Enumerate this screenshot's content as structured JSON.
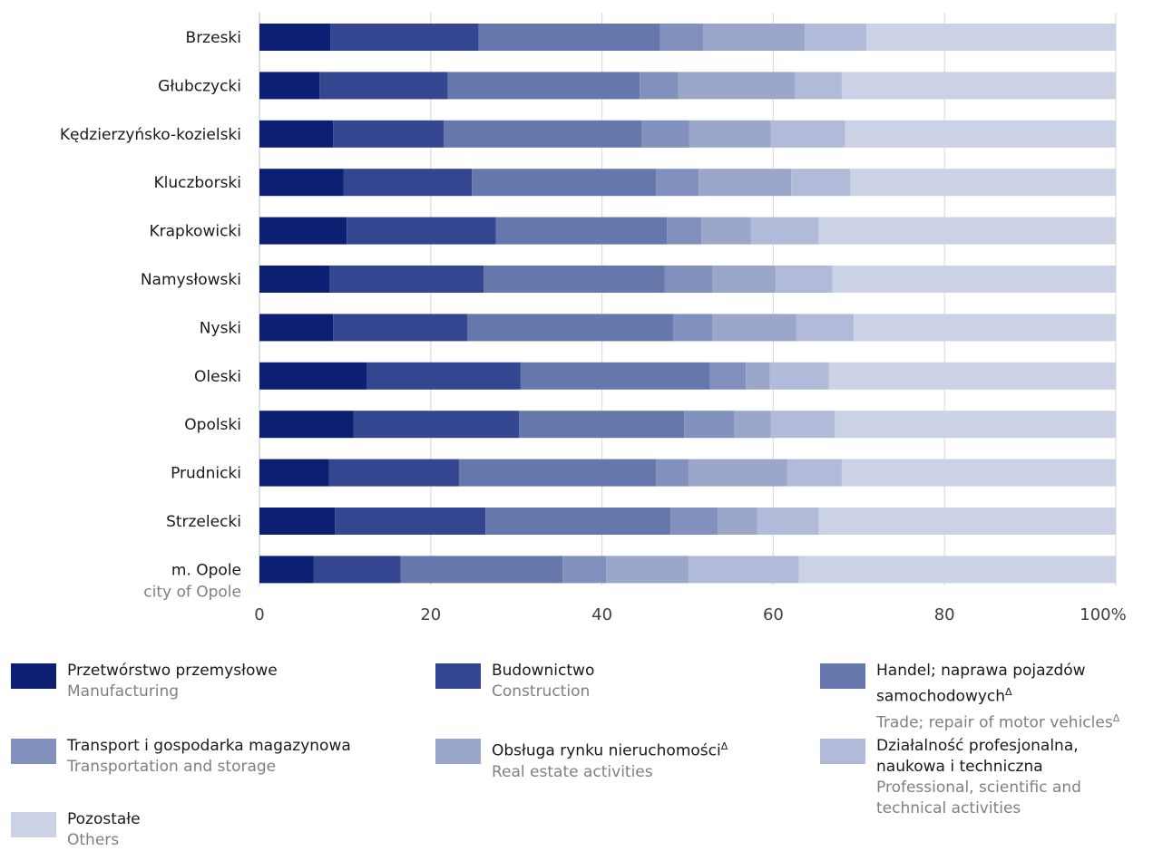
{
  "chart_data": {
    "type": "bar",
    "orientation": "horizontal",
    "stacked": true,
    "categories": [
      "Brzeski",
      "Głubczycki",
      "Kędzierzyńsko-kozielski",
      "Kluczborski",
      "Krapkowicki",
      "Namysłowski",
      "Nyski",
      "Oleski",
      "Opolski",
      "Prudnicki",
      "Strzelecki",
      "m. Opole"
    ],
    "category_sublabels": [
      "",
      "",
      "",
      "",
      "",
      "",
      "",
      "",
      "",
      "",
      "",
      "city of Opole"
    ],
    "series": [
      {
        "name": "Przetwórstwo przemysłowe",
        "name_en": "Manufacturing",
        "color": "#0c1f73",
        "values": [
          8.3,
          7.0,
          8.6,
          9.8,
          10.2,
          8.2,
          8.6,
          12.5,
          11.0,
          8.1,
          8.8,
          6.3
        ]
      },
      {
        "name": "Budownictwo",
        "name_en": "Construction",
        "color": "#33468f",
        "values": [
          17.3,
          15.0,
          12.9,
          15.0,
          17.4,
          18.0,
          15.7,
          18.0,
          19.3,
          15.2,
          17.6,
          10.2
        ]
      },
      {
        "name": "Handel; naprawa pojazdów samochodowych",
        "name_sup": "Δ",
        "name_en": "Trade; repair of motor vehicles",
        "name_en_sup": "Δ",
        "color": "#6677ac",
        "values": [
          21.2,
          22.4,
          23.1,
          21.5,
          20.0,
          21.1,
          24.0,
          22.1,
          19.3,
          23.0,
          21.6,
          18.9
        ]
      },
      {
        "name": "Transport i gospodarka magazynowa",
        "name_en": "Transportation and storage",
        "color": "#8290bd",
        "values": [
          5.0,
          4.5,
          5.6,
          5.0,
          4.0,
          5.6,
          4.6,
          4.2,
          5.8,
          3.8,
          5.5,
          5.1
        ]
      },
      {
        "name": "Obsługa rynku nieruchomości",
        "name_sup": "Δ",
        "name_en": "Real estate activities",
        "color": "#9ba7ca",
        "values": [
          11.9,
          13.6,
          9.5,
          10.8,
          5.8,
          7.4,
          9.8,
          2.8,
          4.3,
          11.5,
          4.6,
          9.6
        ]
      },
      {
        "name": "Działalność profesjonalna, naukowa i techniczna",
        "name_en": "Professional, scientific and technical activities",
        "color": "#b1bad8",
        "values": [
          7.2,
          5.5,
          8.7,
          6.9,
          7.9,
          6.6,
          6.7,
          6.9,
          7.5,
          6.4,
          7.2,
          12.9
        ]
      },
      {
        "name": "Pozostałe",
        "name_en": "Others",
        "color": "#ccd2e6",
        "values": [
          29.1,
          32.0,
          31.6,
          31.0,
          34.7,
          33.1,
          30.6,
          33.5,
          32.8,
          32.0,
          34.7,
          37.0
        ]
      }
    ],
    "xlim": [
      0,
      100
    ],
    "xticks": [
      "0",
      "20",
      "40",
      "60",
      "80",
      "100%"
    ],
    "grid": true,
    "legend_position": "bottom"
  }
}
